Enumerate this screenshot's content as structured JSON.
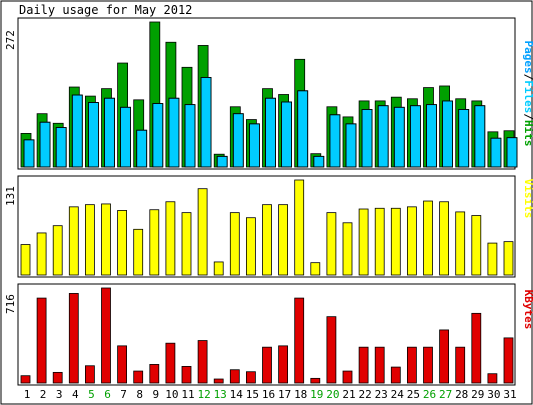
{
  "title": "Daily usage for May 2012",
  "colors": {
    "background": "#ffffff",
    "hits": "#00a000",
    "files": "#00ccff",
    "pages": "#00a0ff",
    "visits": "#ffff00",
    "kbytes": "#e00000",
    "weekend_label": "#00a000",
    "weekday_label": "#000000"
  },
  "chart_data": [
    {
      "type": "bar",
      "title": "",
      "ylabel_parts": [
        {
          "text": "Pages",
          "color": "#00a0ff"
        },
        {
          "text": "/",
          "color": "#000000"
        },
        {
          "text": "Files",
          "color": "#00ccff"
        },
        {
          "text": "/",
          "color": "#000000"
        },
        {
          "text": "Hits",
          "color": "#00a000"
        }
      ],
      "ymax_label": "272",
      "ylim": [
        0,
        272
      ],
      "categories": [
        "1",
        "2",
        "3",
        "4",
        "5",
        "6",
        "7",
        "8",
        "9",
        "10",
        "11",
        "12",
        "13",
        "14",
        "15",
        "16",
        "17",
        "18",
        "19",
        "20",
        "21",
        "22",
        "23",
        "24",
        "25",
        "26",
        "27",
        "28",
        "29",
        "30",
        "31"
      ],
      "series": [
        {
          "name": "Hits",
          "values": [
            63,
            100,
            82,
            150,
            133,
            147,
            195,
            126,
            272,
            234,
            187,
            228,
            24,
            113,
            89,
            147,
            136,
            202,
            25,
            113,
            94,
            124,
            124,
            131,
            128,
            149,
            152,
            128,
            124,
            66,
            68
          ]
        },
        {
          "name": "Files",
          "values": [
            51,
            84,
            74,
            135,
            121,
            129,
            112,
            69,
            119,
            129,
            117,
            168,
            20,
            100,
            81,
            129,
            122,
            143,
            20,
            98,
            81,
            108,
            115,
            112,
            115,
            117,
            124,
            108,
            115,
            54,
            55
          ]
        },
        {
          "name": "Pages",
          "values": [
            51,
            84,
            74,
            135,
            121,
            129,
            112,
            69,
            119,
            129,
            117,
            168,
            20,
            100,
            81,
            129,
            122,
            143,
            20,
            98,
            81,
            108,
            115,
            112,
            115,
            117,
            124,
            108,
            115,
            54,
            55
          ]
        }
      ]
    },
    {
      "type": "bar",
      "title": "",
      "ylabel": "Visits",
      "ymax_label": "131",
      "ylim": [
        0,
        131
      ],
      "categories": [
        "1",
        "2",
        "3",
        "4",
        "5",
        "6",
        "7",
        "8",
        "9",
        "10",
        "11",
        "12",
        "13",
        "14",
        "15",
        "16",
        "17",
        "18",
        "19",
        "20",
        "21",
        "22",
        "23",
        "24",
        "25",
        "26",
        "27",
        "28",
        "29",
        "30",
        "31"
      ],
      "series": [
        {
          "name": "Visits",
          "values": [
            42,
            58,
            68,
            94,
            97,
            98,
            89,
            63,
            90,
            101,
            86,
            119,
            18,
            86,
            79,
            97,
            97,
            131,
            17,
            86,
            72,
            91,
            92,
            92,
            94,
            102,
            101,
            87,
            82,
            44,
            46
          ]
        }
      ]
    },
    {
      "type": "bar",
      "title": "",
      "ylabel": "KBytes",
      "ymax_label": "716",
      "ylim": [
        0,
        716
      ],
      "categories": [
        "1",
        "2",
        "3",
        "4",
        "5",
        "6",
        "7",
        "8",
        "9",
        "10",
        "11",
        "12",
        "13",
        "14",
        "15",
        "16",
        "17",
        "18",
        "19",
        "20",
        "21",
        "22",
        "23",
        "24",
        "25",
        "26",
        "27",
        "28",
        "29",
        "30",
        "31"
      ],
      "series": [
        {
          "name": "KBytes",
          "values": [
            55,
            640,
            80,
            675,
            130,
            716,
            280,
            90,
            140,
            300,
            125,
            320,
            30,
            100,
            85,
            270,
            280,
            640,
            35,
            500,
            90,
            270,
            270,
            120,
            270,
            270,
            400,
            270,
            525,
            70,
            340
          ]
        }
      ]
    }
  ],
  "x_labels": {
    "days": [
      "1",
      "2",
      "3",
      "4",
      "5",
      "6",
      "7",
      "8",
      "9",
      "10",
      "11",
      "12",
      "13",
      "14",
      "15",
      "16",
      "17",
      "18",
      "19",
      "20",
      "21",
      "22",
      "23",
      "24",
      "25",
      "26",
      "27",
      "28",
      "29",
      "30",
      "31"
    ],
    "weekend_days": [
      "5",
      "6",
      "12",
      "13",
      "19",
      "20",
      "26",
      "27"
    ]
  }
}
